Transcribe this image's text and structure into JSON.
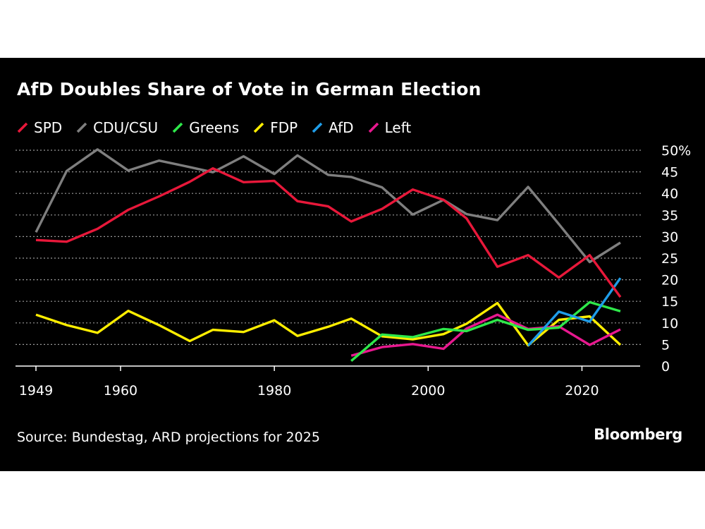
{
  "chart_data": {
    "type": "line",
    "title": "AfD Doubles Share of Vote in German Election",
    "xlabel": "",
    "ylabel": "",
    "xlim": [
      1949,
      2025
    ],
    "ylim": [
      0,
      50
    ],
    "x_ticks": [
      "1949",
      "1960",
      "1980",
      "2000",
      "2020"
    ],
    "y_ticks": [
      "50%",
      "45",
      "40",
      "35",
      "30",
      "25",
      "20",
      "15",
      "10",
      "5",
      "0"
    ],
    "y_tick_values": [
      50,
      45,
      40,
      35,
      30,
      25,
      20,
      15,
      10,
      5,
      0
    ],
    "grid": true,
    "legend_position": "top-left",
    "series": [
      {
        "name": "SPD",
        "color": "#e8183a",
        "x": [
          1949,
          1953,
          1957,
          1961,
          1965,
          1969,
          1972,
          1976,
          1980,
          1983,
          1987,
          1990,
          1994,
          1998,
          2002,
          2005,
          2009,
          2013,
          2017,
          2021,
          2025
        ],
        "values": [
          29.2,
          28.8,
          31.8,
          36.2,
          39.3,
          42.7,
          45.8,
          42.6,
          42.9,
          38.2,
          37.0,
          33.5,
          36.4,
          40.9,
          38.5,
          34.2,
          23.0,
          25.7,
          20.5,
          25.7,
          16.0
        ]
      },
      {
        "name": "CDU/CSU",
        "color": "#7f7f7f",
        "x": [
          1949,
          1953,
          1957,
          1961,
          1965,
          1969,
          1972,
          1976,
          1980,
          1983,
          1987,
          1990,
          1994,
          1998,
          2002,
          2005,
          2009,
          2013,
          2017,
          2021,
          2025
        ],
        "values": [
          31.0,
          45.2,
          50.2,
          45.3,
          47.6,
          46.1,
          44.9,
          48.6,
          44.5,
          48.8,
          44.3,
          43.8,
          41.4,
          35.1,
          38.5,
          35.2,
          33.8,
          41.5,
          32.9,
          24.1,
          28.6
        ]
      },
      {
        "name": "Greens",
        "color": "#2ee84a",
        "x": [
          1990,
          1994,
          1998,
          2002,
          2005,
          2009,
          2013,
          2017,
          2021,
          2025
        ],
        "values": [
          1.2,
          7.3,
          6.7,
          8.6,
          8.1,
          10.7,
          8.4,
          8.9,
          14.8,
          12.7
        ]
      },
      {
        "name": "FDP",
        "color": "#ffee00",
        "x": [
          1949,
          1953,
          1957,
          1961,
          1965,
          1969,
          1972,
          1976,
          1980,
          1983,
          1987,
          1990,
          1994,
          1998,
          2002,
          2005,
          2009,
          2013,
          2017,
          2021,
          2025
        ],
        "values": [
          11.9,
          9.5,
          7.7,
          12.8,
          9.5,
          5.8,
          8.4,
          7.9,
          10.6,
          7.0,
          9.1,
          11.0,
          6.9,
          6.2,
          7.4,
          9.8,
          14.6,
          4.8,
          10.7,
          11.5,
          4.9
        ]
      },
      {
        "name": "AfD",
        "color": "#1f9de8",
        "x": [
          2013,
          2017,
          2021,
          2025
        ],
        "values": [
          4.7,
          12.6,
          10.3,
          20.4
        ]
      },
      {
        "name": "Left",
        "color": "#e8188f",
        "x": [
          1990,
          1994,
          1998,
          2002,
          2005,
          2009,
          2013,
          2017,
          2021,
          2025
        ],
        "values": [
          2.4,
          4.4,
          5.1,
          4.0,
          8.7,
          11.9,
          8.6,
          9.2,
          4.9,
          8.5
        ]
      }
    ]
  },
  "footer": {
    "source": "Source: Bundestag, ARD projections for 2025",
    "brand": "Bloomberg"
  }
}
